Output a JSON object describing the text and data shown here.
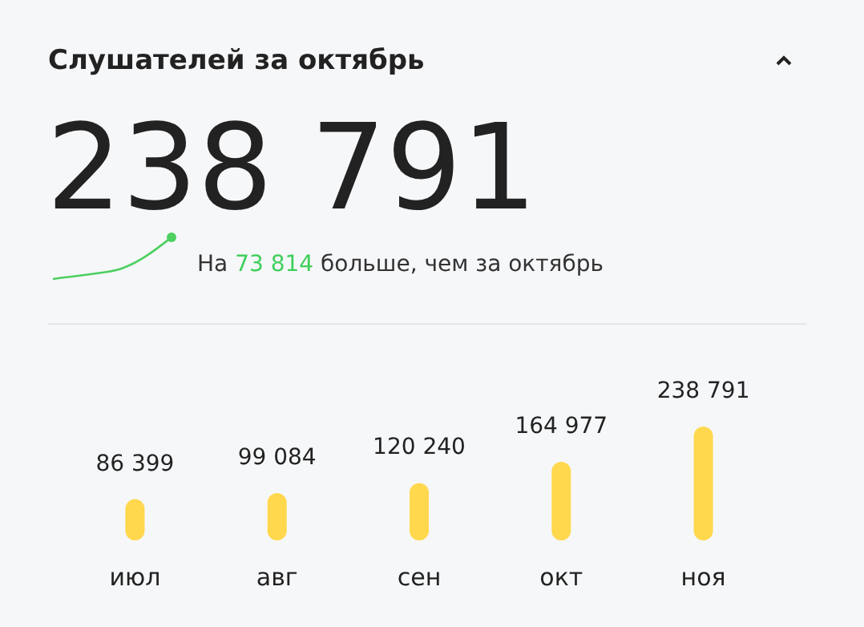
{
  "chart_data": {
    "type": "bar",
    "title": "Слушателей за октябрь",
    "annotations": [
      "238 791",
      "На 73 814 больше, чем за октябрь"
    ],
    "categories": [
      "июл",
      "авг",
      "сен",
      "окт",
      "ноя"
    ],
    "values": [
      86399,
      99084,
      120240,
      164977,
      238791
    ],
    "value_labels": [
      "86 399",
      "99 084",
      "120 240",
      "164 977",
      "238 791"
    ],
    "color": "#ffd84d"
  }
}
